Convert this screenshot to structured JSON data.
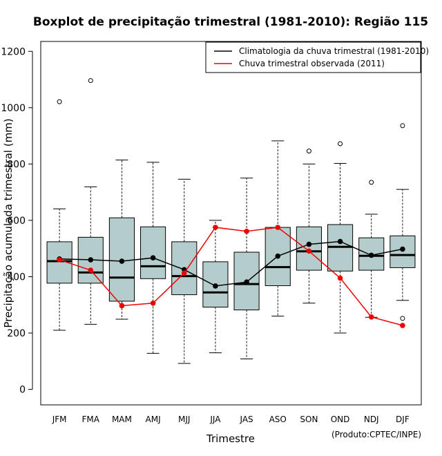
{
  "chart_data": {
    "type": "boxplot",
    "title": "Boxplot de precipitação trimestral (1981-2010): Região 115",
    "xlabel": "Trimestre",
    "ylabel": "Precipitação acumulada trimestral (mm)",
    "credit": "(Produto:CPTEC/INPE)",
    "ylim": [
      -55,
      1235
    ],
    "yticks": [
      0,
      200,
      400,
      600,
      800,
      1000,
      1200
    ],
    "categories": [
      "JFM",
      "FMA",
      "MAM",
      "AMJ",
      "MJJ",
      "JJA",
      "JAS",
      "ASO",
      "SON",
      "OND",
      "NDJ",
      "DJF"
    ],
    "boxes": [
      {
        "min": 210,
        "q1": 377,
        "median": 455,
        "q3": 524,
        "max": 641,
        "outliers": [
          1021
        ]
      },
      {
        "min": 231,
        "q1": 377,
        "median": 415,
        "q3": 540,
        "max": 719,
        "outliers": [
          1096
        ]
      },
      {
        "min": 249,
        "q1": 313,
        "median": 397,
        "q3": 609,
        "max": 814,
        "outliers": []
      },
      {
        "min": 128,
        "q1": 393,
        "median": 437,
        "q3": 577,
        "max": 806,
        "outliers": []
      },
      {
        "min": 92,
        "q1": 336,
        "median": 402,
        "q3": 524,
        "max": 746,
        "outliers": []
      },
      {
        "min": 130,
        "q1": 292,
        "median": 344,
        "q3": 453,
        "max": 600,
        "outliers": []
      },
      {
        "min": 108,
        "q1": 282,
        "median": 374,
        "q3": 487,
        "max": 750,
        "outliers": []
      },
      {
        "min": 260,
        "q1": 368,
        "median": 434,
        "q3": 575,
        "max": 882,
        "outliers": []
      },
      {
        "min": 306,
        "q1": 423,
        "median": 490,
        "q3": 577,
        "max": 800,
        "outliers": [
          846
        ]
      },
      {
        "min": 200,
        "q1": 420,
        "median": 506,
        "q3": 585,
        "max": 802,
        "outliers": [
          872
        ]
      },
      {
        "min": 256,
        "q1": 423,
        "median": 474,
        "q3": 538,
        "max": 622,
        "outliers": [
          735
        ]
      },
      {
        "min": 316,
        "q1": 432,
        "median": 477,
        "q3": 545,
        "max": 710,
        "outliers": [
          252,
          936
        ]
      }
    ],
    "series": [
      {
        "name": "Climatologia da chuva trimestral (1981-2010)",
        "color": "#000000",
        "values": [
          463,
          460,
          455,
          467,
          425,
          367,
          381,
          473,
          515,
          525,
          476,
          498
        ]
      },
      {
        "name": "Chuva trimestral observada (2011)",
        "color": "#ee0000",
        "values": [
          460,
          423,
          297,
          306,
          413,
          575,
          561,
          575,
          491,
          395,
          257,
          227
        ]
      }
    ],
    "box_fill": "#b5cccc",
    "legend_position": "top-right"
  }
}
